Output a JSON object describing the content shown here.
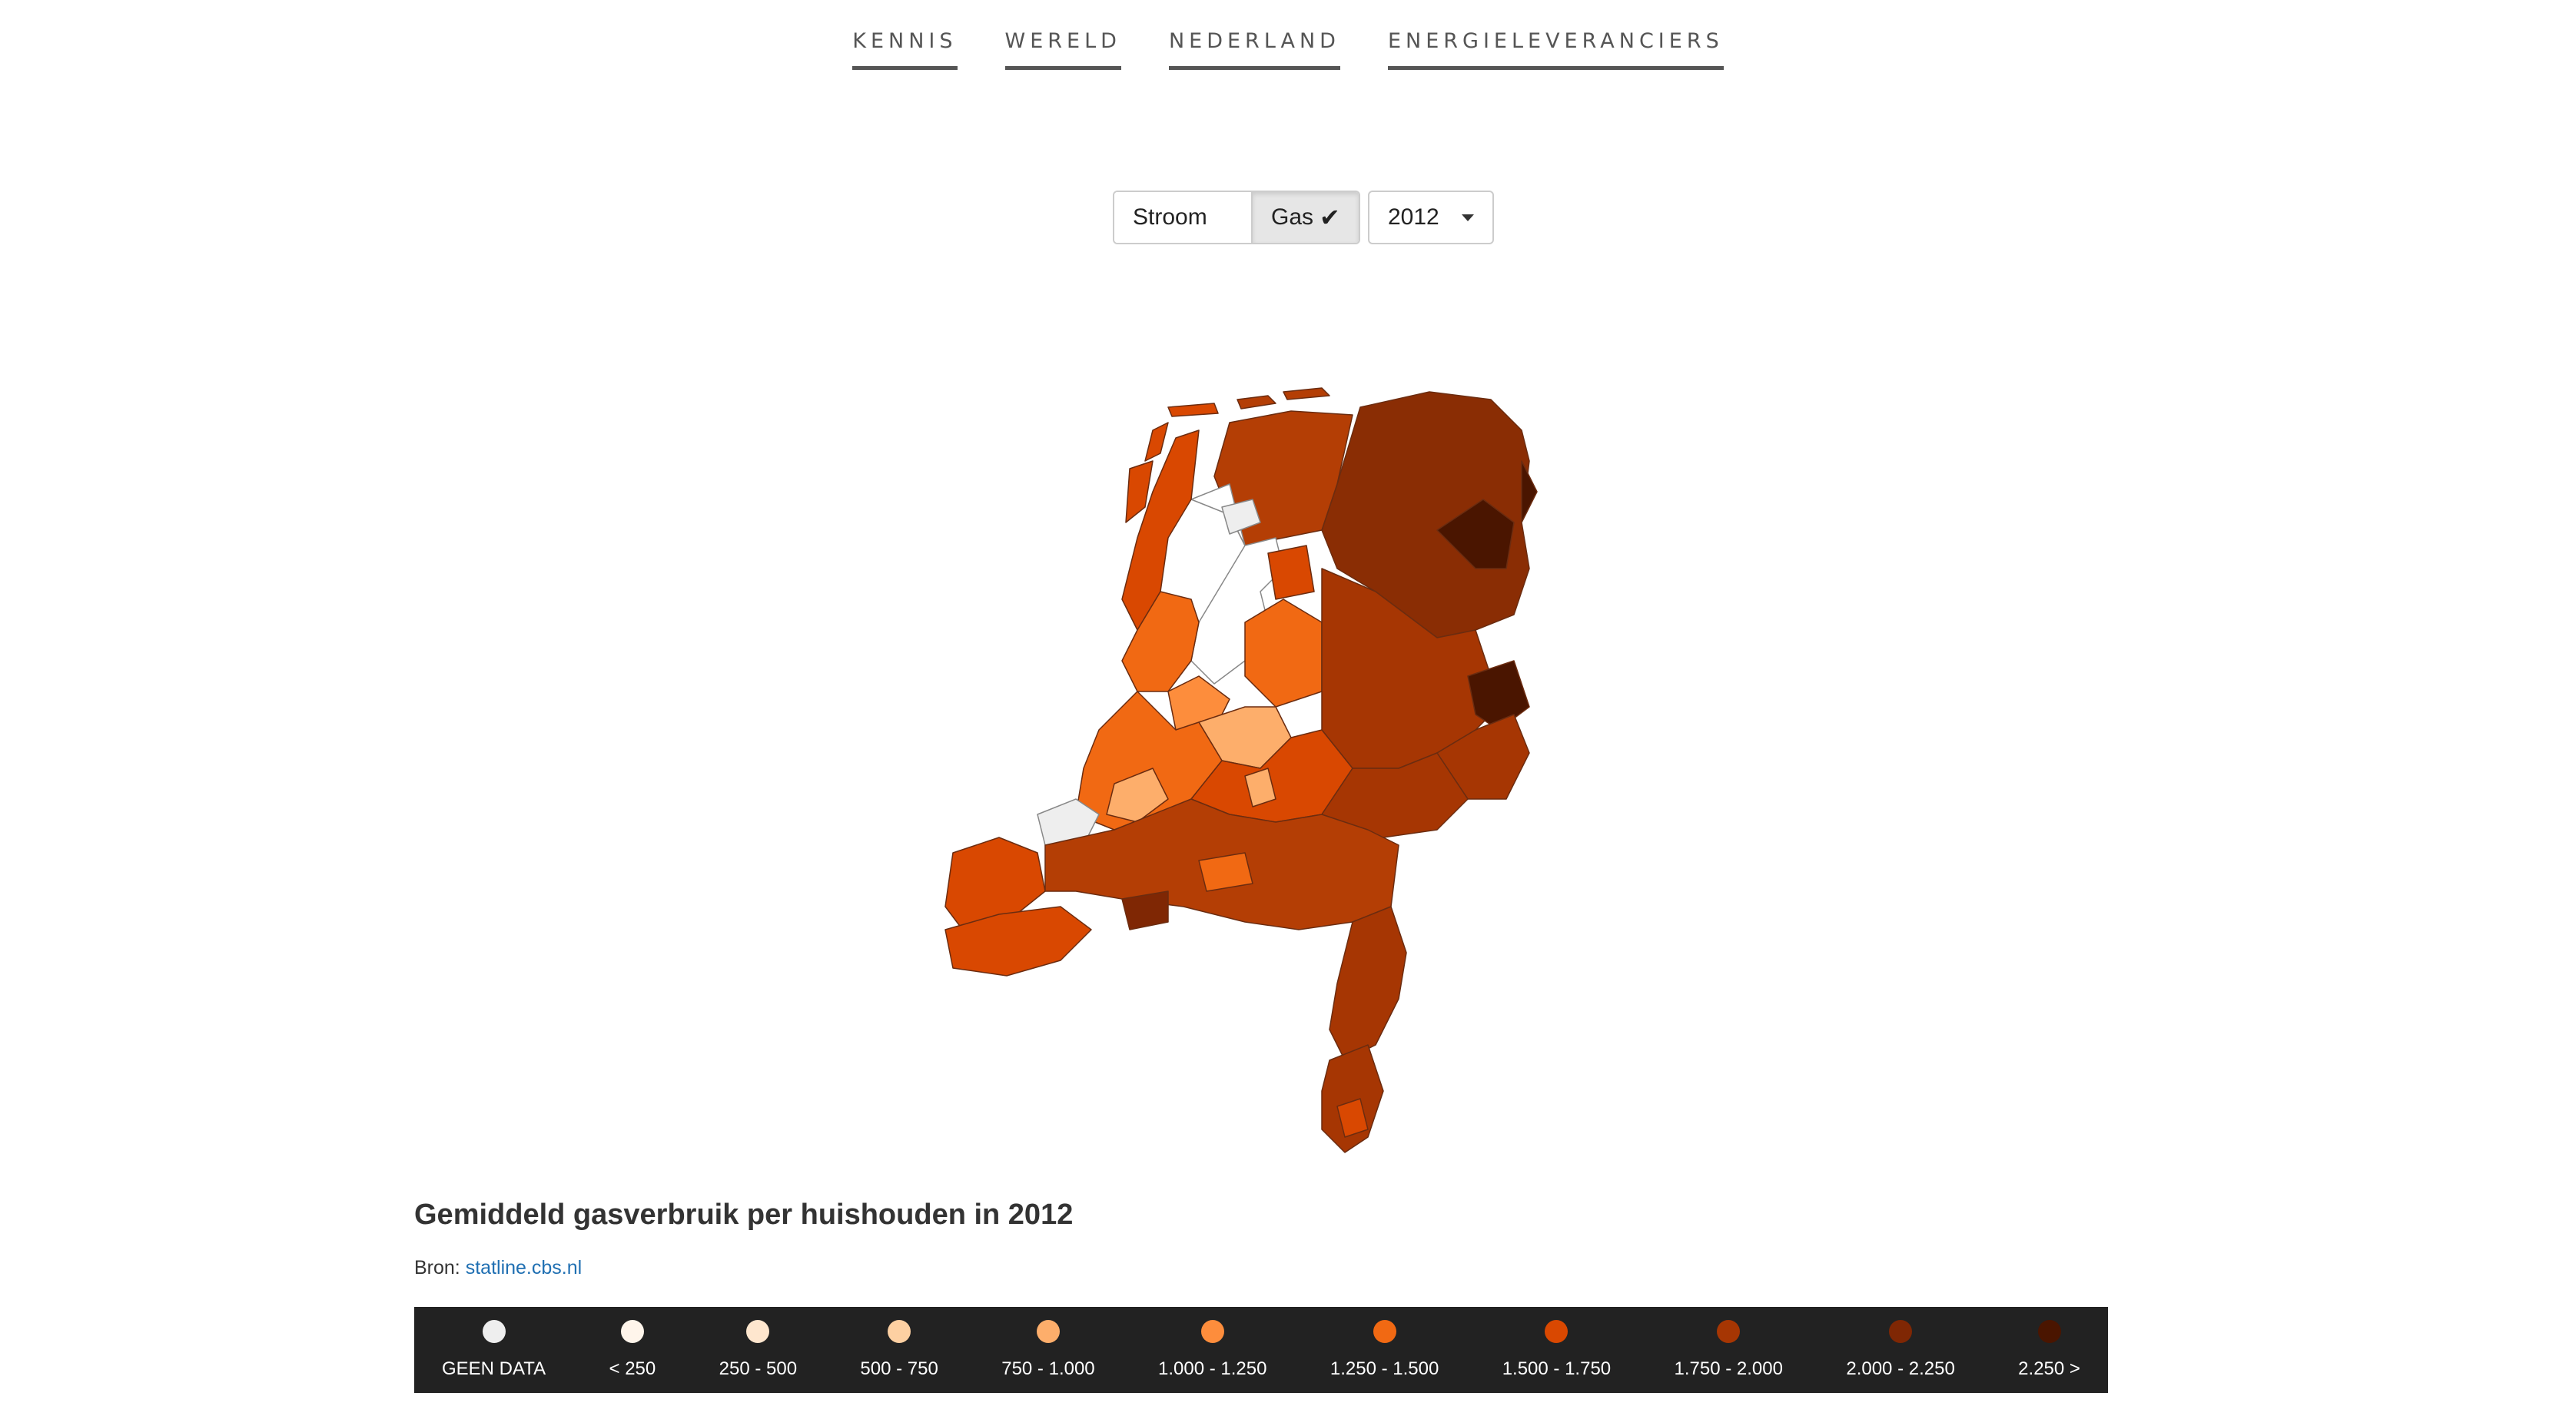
{
  "nav": [
    {
      "label": "KENNIS"
    },
    {
      "label": "WERELD"
    },
    {
      "label": "NEDERLAND"
    },
    {
      "label": "ENERGIELEVERANCIERS"
    }
  ],
  "controls": {
    "stroom_label": "Stroom",
    "gas_label": "Gas",
    "gas_selected": true,
    "year_selected": "2012"
  },
  "map": {
    "title": "Gemiddeld gasverbruik per huishouden in 2012",
    "source_prefix": "Bron:",
    "source_link": "statline.cbs.nl"
  },
  "legend": [
    {
      "label": "GEEN DATA",
      "color": "#eeeeee"
    },
    {
      "label": "< 250",
      "color": "#fff5eb"
    },
    {
      "label": "250 - 500",
      "color": "#fee6ce"
    },
    {
      "label": "500 - 750",
      "color": "#fdd0a2"
    },
    {
      "label": "750 - 1.000",
      "color": "#fdae6b"
    },
    {
      "label": "1.000 - 1.250",
      "color": "#fd8d3c"
    },
    {
      "label": "1.250 - 1.500",
      "color": "#f16913"
    },
    {
      "label": "1.500 - 1.750",
      "color": "#d94801"
    },
    {
      "label": "1.750 - 2.000",
      "color": "#a63603"
    },
    {
      "label": "2.000 - 2.250",
      "color": "#7f2704"
    },
    {
      "label": "2.250 >",
      "color": "#4a1500"
    }
  ]
}
